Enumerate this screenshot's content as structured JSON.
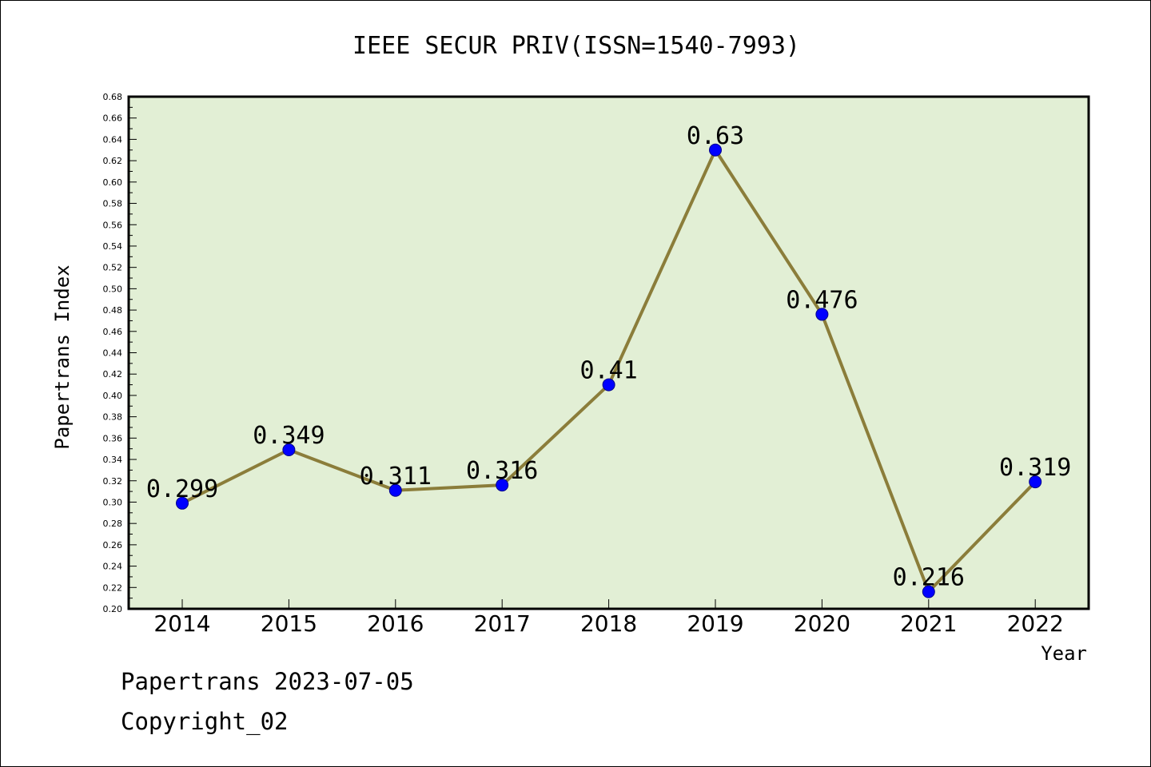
{
  "chart_data": {
    "type": "line",
    "title": "IEEE SECUR PRIV(ISSN=1540-7993)",
    "xlabel": "Year",
    "ylabel": "Papertrans Index",
    "categories": [
      "2014",
      "2015",
      "2016",
      "2017",
      "2018",
      "2019",
      "2020",
      "2021",
      "2022"
    ],
    "values": [
      0.299,
      0.349,
      0.311,
      0.316,
      0.41,
      0.63,
      0.476,
      0.216,
      0.319
    ],
    "data_labels": [
      "0.299",
      "0.349",
      "0.311",
      "0.316",
      "0.41",
      "0.63",
      "0.476",
      "0.216",
      "0.319"
    ],
    "ylim": [
      0.2,
      0.68
    ],
    "ytick_step": 0.02,
    "grid": false,
    "colors": {
      "plot_bg": "#e2efd5",
      "line": "#8b7d3a",
      "marker": "#0000ff"
    }
  },
  "footer": {
    "date_line": "Papertrans 2023-07-05",
    "copyright_line": "Copyright_02"
  }
}
